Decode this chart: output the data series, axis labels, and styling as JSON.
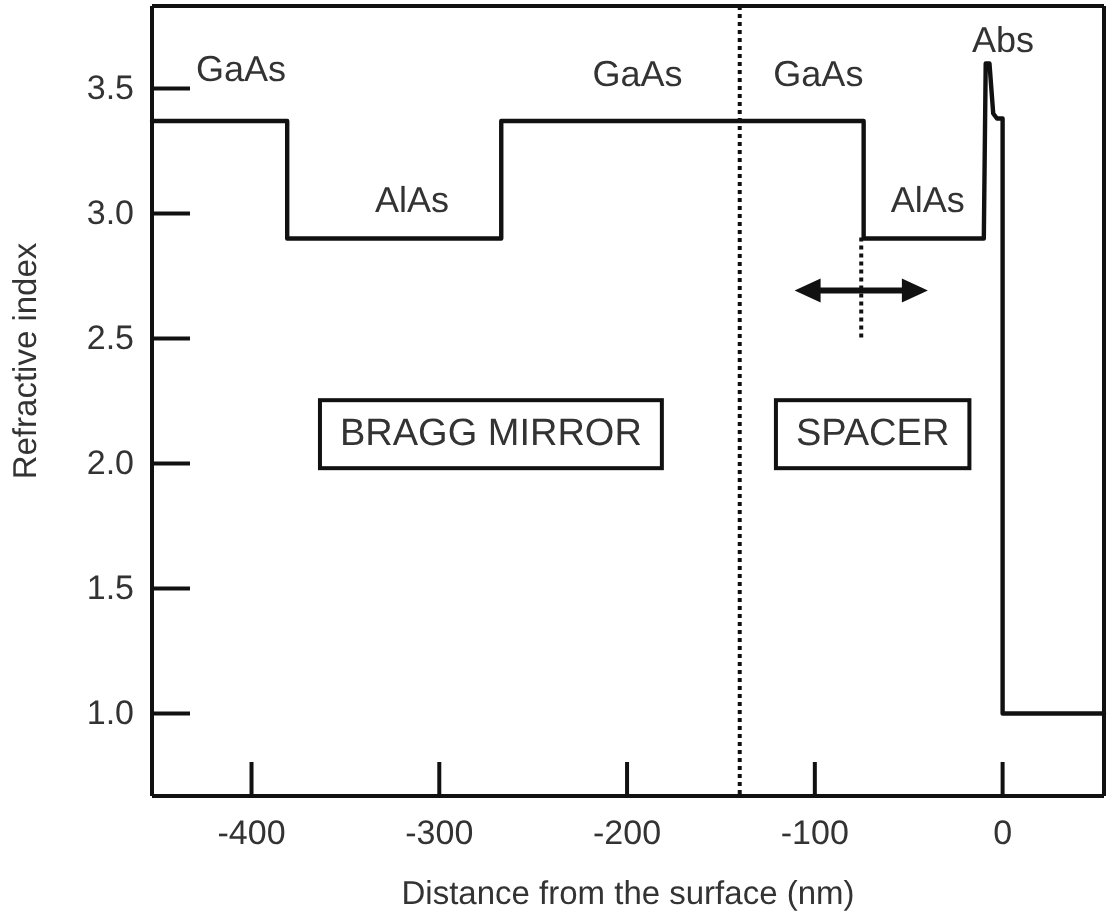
{
  "chart_data": {
    "type": "line",
    "xlabel": "Distance from the surface (nm)",
    "ylabel": "Refractive index",
    "xlim": [
      -453,
      54
    ],
    "ylim": [
      0.67,
      3.83
    ],
    "xticks": [
      -400,
      -300,
      -200,
      -100,
      0
    ],
    "yticks": [
      {
        "value": 1,
        "label": "1.0"
      },
      1.5,
      {
        "value": 2,
        "label": "2.0"
      },
      2.5,
      {
        "value": 3,
        "label": "3.0"
      },
      3.5
    ],
    "series": [
      {
        "color": "#111111",
        "x": [
          -453,
          -381,
          -381,
          -267,
          -267,
          -74,
          -74,
          -10,
          -9,
          -7,
          -5,
          -3,
          0,
          0,
          54
        ],
        "values": [
          3.37,
          3.37,
          2.9,
          2.9,
          3.37,
          3.37,
          2.9,
          2.9,
          3.6,
          3.6,
          3.4,
          3.38,
          3.38,
          1.0,
          1.0
        ]
      }
    ],
    "ref_lines": [
      {
        "axis": "x",
        "value": -140,
        "line_style": "dotted",
        "color": "#111111"
      }
    ],
    "annotations": [
      "GaAs",
      "AlAs",
      "GaAs",
      "GaAs",
      "AlAs",
      "Abs",
      "BRAGG MIRROR",
      "SPACER"
    ]
  }
}
